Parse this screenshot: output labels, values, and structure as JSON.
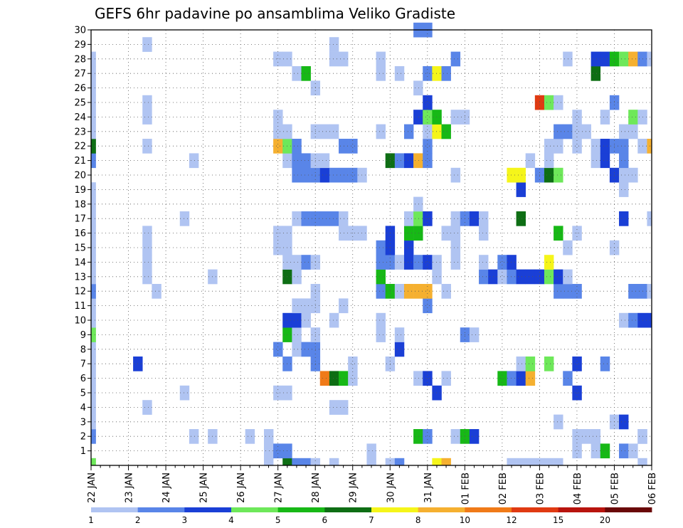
{
  "chart_data": {
    "type": "heatmap",
    "title": "GEFS 6hr padavine po ansamblima Veliko Gradiste",
    "y_ticks": [
      "1",
      "2",
      "3",
      "4",
      "5",
      "6",
      "7",
      "8",
      "9",
      "10",
      "11",
      "12",
      "13",
      "14",
      "15",
      "16",
      "17",
      "18",
      "19",
      "20",
      "21",
      "22",
      "23",
      "24",
      "25",
      "26",
      "27",
      "28",
      "29",
      "30"
    ],
    "ylim": [
      0,
      30
    ],
    "x_tick_labels": [
      "22 JAN",
      "23 JAN",
      "24 JAN",
      "25 JAN",
      "26 JAN",
      "27 JAN",
      "28 JAN",
      "29 JAN",
      "30 JAN",
      "31 JAN",
      "01 FEB",
      "02 FEB",
      "03 FEB",
      "04 FEB",
      "05 FEB",
      "06 FEB"
    ],
    "time_steps": 61,
    "grid": true,
    "legend": {
      "position": "bottom",
      "colors": [
        "#b0c4f2",
        "#5985e8",
        "#1a3fd6",
        "#6ee85a",
        "#17b816",
        "#0e6e14",
        "#f5f51a",
        "#f5b030",
        "#f07a18",
        "#e03a12",
        "#b8140e",
        "#6a0808"
      ],
      "labels": [
        "1",
        "2",
        "3",
        "4",
        "5",
        "6",
        "7",
        "8",
        "10",
        "12",
        "15",
        "20"
      ]
    },
    "cells": [
      [
        0,
        0,
        4
      ],
      [
        0,
        2,
        2
      ],
      [
        0,
        3,
        1
      ],
      [
        0,
        4,
        1
      ],
      [
        0,
        5,
        1
      ],
      [
        0,
        6,
        1
      ],
      [
        0,
        7,
        1
      ],
      [
        0,
        8,
        1
      ],
      [
        0,
        9,
        4
      ],
      [
        0,
        10,
        1
      ],
      [
        0,
        11,
        1
      ],
      [
        0,
        12,
        2
      ],
      [
        0,
        13,
        1
      ],
      [
        0,
        14,
        1
      ],
      [
        0,
        15,
        1
      ],
      [
        0,
        16,
        1
      ],
      [
        0,
        17,
        1
      ],
      [
        0,
        18,
        1
      ],
      [
        0,
        19,
        1
      ],
      [
        0,
        21,
        2
      ],
      [
        0,
        22,
        6
      ],
      [
        0,
        23,
        1
      ],
      [
        0,
        24,
        1
      ],
      [
        0,
        25,
        1
      ],
      [
        0,
        26,
        1
      ],
      [
        0,
        27,
        1
      ],
      [
        0,
        28,
        1
      ],
      [
        5,
        7,
        3
      ],
      [
        6,
        4,
        1
      ],
      [
        6,
        13,
        1
      ],
      [
        6,
        14,
        1
      ],
      [
        6,
        15,
        1
      ],
      [
        6,
        16,
        1
      ],
      [
        6,
        22,
        1
      ],
      [
        6,
        24,
        1
      ],
      [
        6,
        25,
        1
      ],
      [
        6,
        29,
        1
      ],
      [
        7,
        12,
        1
      ],
      [
        10,
        5,
        1
      ],
      [
        10,
        17,
        1
      ],
      [
        11,
        2,
        1
      ],
      [
        11,
        21,
        1
      ],
      [
        13,
        2,
        1
      ],
      [
        13,
        13,
        1
      ],
      [
        17,
        2,
        1
      ],
      [
        19,
        0,
        1
      ],
      [
        19,
        1,
        1
      ],
      [
        19,
        2,
        1
      ],
      [
        20,
        1,
        2
      ],
      [
        20,
        5,
        1
      ],
      [
        20,
        8,
        2
      ],
      [
        20,
        15,
        1
      ],
      [
        20,
        16,
        1
      ],
      [
        20,
        22,
        8
      ],
      [
        20,
        23,
        1
      ],
      [
        20,
        24,
        1
      ],
      [
        20,
        28,
        1
      ],
      [
        21,
        0,
        6
      ],
      [
        21,
        1,
        2
      ],
      [
        21,
        5,
        1
      ],
      [
        21,
        7,
        2
      ],
      [
        21,
        9,
        5
      ],
      [
        21,
        10,
        3
      ],
      [
        21,
        13,
        6
      ],
      [
        21,
        14,
        1
      ],
      [
        21,
        15,
        1
      ],
      [
        21,
        16,
        1
      ],
      [
        21,
        21,
        1
      ],
      [
        21,
        22,
        4
      ],
      [
        21,
        23,
        1
      ],
      [
        21,
        28,
        1
      ],
      [
        22,
        0,
        2
      ],
      [
        22,
        8,
        1
      ],
      [
        22,
        9,
        1
      ],
      [
        22,
        10,
        3
      ],
      [
        22,
        11,
        1
      ],
      [
        22,
        13,
        1
      ],
      [
        22,
        14,
        1
      ],
      [
        22,
        17,
        1
      ],
      [
        22,
        20,
        2
      ],
      [
        22,
        21,
        2
      ],
      [
        22,
        22,
        2
      ],
      [
        22,
        27,
        1
      ],
      [
        23,
        0,
        2
      ],
      [
        23,
        8,
        2
      ],
      [
        23,
        10,
        1
      ],
      [
        23,
        11,
        1
      ],
      [
        23,
        14,
        2
      ],
      [
        23,
        17,
        2
      ],
      [
        23,
        20,
        2
      ],
      [
        23,
        21,
        2
      ],
      [
        23,
        27,
        5
      ],
      [
        24,
        0,
        1
      ],
      [
        24,
        7,
        2
      ],
      [
        24,
        8,
        2
      ],
      [
        24,
        9,
        1
      ],
      [
        24,
        11,
        1
      ],
      [
        24,
        12,
        1
      ],
      [
        24,
        14,
        1
      ],
      [
        24,
        17,
        2
      ],
      [
        24,
        20,
        2
      ],
      [
        24,
        21,
        1
      ],
      [
        24,
        23,
        1
      ],
      [
        24,
        26,
        1
      ],
      [
        25,
        6,
        9
      ],
      [
        25,
        17,
        2
      ],
      [
        25,
        20,
        3
      ],
      [
        25,
        21,
        1
      ],
      [
        25,
        23,
        1
      ],
      [
        26,
        0,
        1
      ],
      [
        26,
        4,
        1
      ],
      [
        26,
        6,
        6
      ],
      [
        26,
        10,
        1
      ],
      [
        26,
        17,
        2
      ],
      [
        26,
        20,
        2
      ],
      [
        26,
        23,
        1
      ],
      [
        26,
        28,
        1
      ],
      [
        26,
        29,
        1
      ],
      [
        27,
        4,
        1
      ],
      [
        27,
        6,
        5
      ],
      [
        27,
        11,
        1
      ],
      [
        27,
        16,
        1
      ],
      [
        27,
        17,
        1
      ],
      [
        27,
        20,
        2
      ],
      [
        27,
        22,
        2
      ],
      [
        27,
        28,
        1
      ],
      [
        28,
        6,
        1
      ],
      [
        28,
        7,
        1
      ],
      [
        28,
        16,
        1
      ],
      [
        28,
        20,
        2
      ],
      [
        28,
        22,
        2
      ],
      [
        29,
        16,
        1
      ],
      [
        29,
        20,
        1
      ],
      [
        30,
        0,
        1
      ],
      [
        30,
        1,
        1
      ],
      [
        31,
        9,
        1
      ],
      [
        31,
        10,
        1
      ],
      [
        31,
        12,
        2
      ],
      [
        31,
        13,
        5
      ],
      [
        31,
        14,
        2
      ],
      [
        31,
        15,
        2
      ],
      [
        31,
        23,
        1
      ],
      [
        31,
        27,
        1
      ],
      [
        31,
        28,
        1
      ],
      [
        32,
        0,
        1
      ],
      [
        32,
        7,
        1
      ],
      [
        32,
        12,
        5
      ],
      [
        32,
        14,
        2
      ],
      [
        32,
        15,
        3
      ],
      [
        32,
        16,
        3
      ],
      [
        32,
        21,
        6
      ],
      [
        33,
        0,
        2
      ],
      [
        33,
        8,
        3
      ],
      [
        33,
        9,
        1
      ],
      [
        33,
        12,
        1
      ],
      [
        33,
        14,
        1
      ],
      [
        33,
        21,
        2
      ],
      [
        33,
        27,
        1
      ],
      [
        34,
        12,
        8
      ],
      [
        34,
        14,
        3
      ],
      [
        34,
        15,
        3
      ],
      [
        34,
        16,
        5
      ],
      [
        34,
        17,
        1
      ],
      [
        34,
        21,
        3
      ],
      [
        34,
        23,
        2
      ],
      [
        35,
        2,
        5
      ],
      [
        35,
        6,
        1
      ],
      [
        35,
        12,
        8
      ],
      [
        35,
        14,
        2
      ],
      [
        35,
        16,
        5
      ],
      [
        35,
        17,
        4
      ],
      [
        35,
        18,
        1
      ],
      [
        35,
        21,
        8
      ],
      [
        35,
        24,
        3
      ],
      [
        35,
        26,
        1
      ],
      [
        35,
        30,
        2
      ],
      [
        36,
        2,
        2
      ],
      [
        36,
        6,
        3
      ],
      [
        36,
        11,
        2
      ],
      [
        36,
        12,
        8
      ],
      [
        36,
        14,
        3
      ],
      [
        36,
        17,
        3
      ],
      [
        36,
        21,
        2
      ],
      [
        36,
        22,
        2
      ],
      [
        36,
        23,
        1
      ],
      [
        36,
        24,
        4
      ],
      [
        36,
        25,
        3
      ],
      [
        36,
        27,
        2
      ],
      [
        36,
        30,
        2
      ],
      [
        37,
        0,
        7
      ],
      [
        37,
        5,
        3
      ],
      [
        37,
        13,
        1
      ],
      [
        37,
        14,
        1
      ],
      [
        37,
        23,
        7
      ],
      [
        37,
        24,
        5
      ],
      [
        37,
        27,
        7
      ],
      [
        38,
        0,
        8
      ],
      [
        38,
        6,
        1
      ],
      [
        38,
        12,
        1
      ],
      [
        38,
        16,
        1
      ],
      [
        38,
        23,
        5
      ],
      [
        38,
        27,
        2
      ],
      [
        39,
        2,
        1
      ],
      [
        39,
        14,
        1
      ],
      [
        39,
        15,
        1
      ],
      [
        39,
        16,
        1
      ],
      [
        39,
        17,
        1
      ],
      [
        39,
        20,
        1
      ],
      [
        39,
        24,
        1
      ],
      [
        39,
        28,
        2
      ],
      [
        40,
        2,
        5
      ],
      [
        40,
        9,
        2
      ],
      [
        40,
        17,
        2
      ],
      [
        40,
        24,
        1
      ],
      [
        41,
        2,
        3
      ],
      [
        41,
        9,
        1
      ],
      [
        41,
        17,
        3
      ],
      [
        42,
        13,
        2
      ],
      [
        42,
        14,
        1
      ],
      [
        42,
        16,
        1
      ],
      [
        42,
        17,
        1
      ],
      [
        43,
        13,
        3
      ],
      [
        44,
        6,
        5
      ],
      [
        44,
        13,
        1
      ],
      [
        44,
        14,
        2
      ],
      [
        45,
        0,
        1
      ],
      [
        45,
        6,
        2
      ],
      [
        45,
        13,
        2
      ],
      [
        45,
        14,
        3
      ],
      [
        45,
        20,
        7
      ],
      [
        46,
        0,
        1
      ],
      [
        46,
        6,
        3
      ],
      [
        46,
        7,
        1
      ],
      [
        46,
        13,
        3
      ],
      [
        46,
        17,
        6
      ],
      [
        46,
        19,
        3
      ],
      [
        46,
        20,
        7
      ],
      [
        47,
        0,
        1
      ],
      [
        47,
        6,
        8
      ],
      [
        47,
        7,
        4
      ],
      [
        47,
        13,
        3
      ],
      [
        47,
        21,
        1
      ],
      [
        48,
        0,
        1
      ],
      [
        48,
        13,
        3
      ],
      [
        48,
        20,
        2
      ],
      [
        48,
        25,
        10
      ],
      [
        49,
        0,
        1
      ],
      [
        49,
        7,
        4
      ],
      [
        49,
        13,
        4
      ],
      [
        49,
        14,
        7
      ],
      [
        49,
        20,
        6
      ],
      [
        49,
        21,
        1
      ],
      [
        49,
        22,
        1
      ],
      [
        49,
        25,
        4
      ],
      [
        50,
        0,
        1
      ],
      [
        50,
        3,
        1
      ],
      [
        50,
        12,
        2
      ],
      [
        50,
        13,
        3
      ],
      [
        50,
        16,
        5
      ],
      [
        50,
        20,
        4
      ],
      [
        50,
        22,
        1
      ],
      [
        50,
        23,
        2
      ],
      [
        50,
        25,
        1
      ],
      [
        51,
        6,
        2
      ],
      [
        51,
        12,
        2
      ],
      [
        51,
        13,
        1
      ],
      [
        51,
        15,
        1
      ],
      [
        51,
        23,
        2
      ],
      [
        51,
        28,
        1
      ],
      [
        52,
        1,
        1
      ],
      [
        52,
        2,
        1
      ],
      [
        52,
        5,
        3
      ],
      [
        52,
        7,
        3
      ],
      [
        52,
        12,
        2
      ],
      [
        52,
        16,
        1
      ],
      [
        52,
        22,
        1
      ],
      [
        52,
        23,
        1
      ],
      [
        52,
        24,
        1
      ],
      [
        53,
        2,
        1
      ],
      [
        53,
        23,
        1
      ],
      [
        54,
        1,
        1
      ],
      [
        54,
        2,
        1
      ],
      [
        54,
        21,
        1
      ],
      [
        54,
        22,
        1
      ],
      [
        54,
        27,
        6
      ],
      [
        54,
        28,
        3
      ],
      [
        55,
        1,
        5
      ],
      [
        55,
        7,
        2
      ],
      [
        55,
        21,
        3
      ],
      [
        55,
        22,
        3
      ],
      [
        55,
        24,
        1
      ],
      [
        55,
        28,
        3
      ],
      [
        56,
        3,
        1
      ],
      [
        56,
        15,
        1
      ],
      [
        56,
        20,
        3
      ],
      [
        56,
        22,
        2
      ],
      [
        56,
        25,
        2
      ],
      [
        56,
        28,
        5
      ],
      [
        57,
        1,
        2
      ],
      [
        57,
        3,
        3
      ],
      [
        57,
        10,
        1
      ],
      [
        57,
        17,
        3
      ],
      [
        57,
        19,
        1
      ],
      [
        57,
        20,
        1
      ],
      [
        57,
        21,
        2
      ],
      [
        57,
        22,
        2
      ],
      [
        57,
        23,
        1
      ],
      [
        57,
        28,
        4
      ],
      [
        58,
        1,
        1
      ],
      [
        58,
        10,
        2
      ],
      [
        58,
        12,
        2
      ],
      [
        58,
        20,
        1
      ],
      [
        58,
        23,
        1
      ],
      [
        58,
        24,
        4
      ],
      [
        58,
        28,
        8
      ],
      [
        59,
        0,
        1
      ],
      [
        59,
        2,
        1
      ],
      [
        59,
        2,
        1
      ],
      [
        59,
        10,
        3
      ],
      [
        59,
        12,
        2
      ],
      [
        59,
        22,
        1
      ],
      [
        59,
        24,
        1
      ],
      [
        59,
        28,
        2
      ],
      [
        60,
        10,
        3
      ],
      [
        60,
        12,
        1
      ],
      [
        60,
        17,
        1
      ],
      [
        60,
        22,
        8
      ],
      [
        60,
        28,
        1
      ]
    ]
  }
}
